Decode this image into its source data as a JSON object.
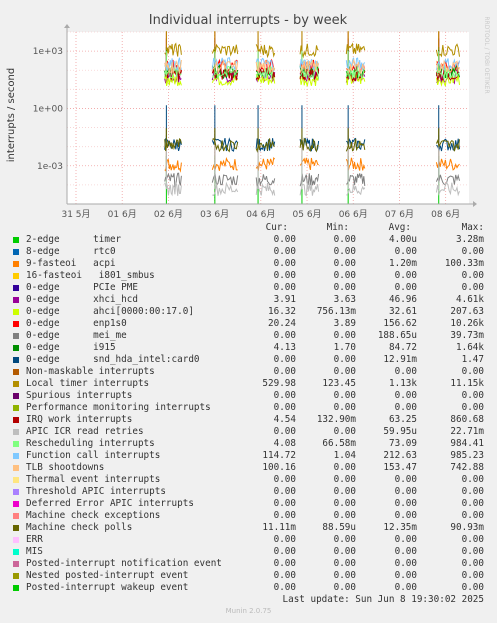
{
  "title": "Individual interrupts - by week",
  "ylabel": "interrupts / second",
  "side_label": "RRDTOOL / TOBI OETIKER",
  "columns": {
    "cur": "Cur:",
    "min": "Min:",
    "avg": "Avg:",
    "max": "Max:"
  },
  "chart_data": {
    "type": "line",
    "title": "Individual interrupts - by week",
    "ylabel": "interrupts / second",
    "y_scale": "log",
    "ylim": [
      1e-05,
      10000
    ],
    "y_ticks": [
      "1e+03",
      "1e+00",
      "1e-03"
    ],
    "x_ticks": [
      "31 5月",
      "01 6月",
      "02 6月",
      "03 6月",
      "04 6月",
      "05 6月",
      "06 6月",
      "07 6月",
      "08 6月"
    ],
    "grid": true,
    "series": [
      {
        "name": "2-edge      timer",
        "color": "#00cc00",
        "cur": "0.00",
        "min": "0.00",
        "avg": "4.00u",
        "max": "3.28m"
      },
      {
        "name": "8-edge      rtc0",
        "color": "#0066b3",
        "cur": "0.00",
        "min": "0.00",
        "avg": "0.00",
        "max": "0.00"
      },
      {
        "name": "9-fasteoi   acpi",
        "color": "#ff8000",
        "cur": "0.00",
        "min": "0.00",
        "avg": "1.20m",
        "max": "100.33m"
      },
      {
        "name": "16-fasteoi   i801_smbus",
        "color": "#ffcc00",
        "cur": "0.00",
        "min": "0.00",
        "avg": "0.00",
        "max": "0.00"
      },
      {
        "name": "0-edge      PCIe PME",
        "color": "#330099",
        "cur": "0.00",
        "min": "0.00",
        "avg": "0.00",
        "max": "0.00"
      },
      {
        "name": "0-edge      xhci_hcd",
        "color": "#990099",
        "cur": "3.91",
        "min": "3.63",
        "avg": "46.96",
        "max": "4.61k"
      },
      {
        "name": "0-edge      ahci[0000:00:17.0]",
        "color": "#ccff00",
        "cur": "16.32",
        "min": "756.13m",
        "avg": "32.61",
        "max": "207.63"
      },
      {
        "name": "0-edge      enp1s0",
        "color": "#ff0000",
        "cur": "20.24",
        "min": "3.89",
        "avg": "156.62",
        "max": "10.26k"
      },
      {
        "name": "0-edge      mei_me",
        "color": "#808080",
        "cur": "0.00",
        "min": "0.00",
        "avg": "188.65u",
        "max": "39.73m"
      },
      {
        "name": "0-edge      i915",
        "color": "#008f00",
        "cur": "4.13",
        "min": "1.70",
        "avg": "84.72",
        "max": "1.64k"
      },
      {
        "name": "0-edge      snd_hda_intel:card0",
        "color": "#00487d",
        "cur": "0.00",
        "min": "0.00",
        "avg": "12.91m",
        "max": "1.47"
      },
      {
        "name": "Non-maskable interrupts",
        "color": "#b35a00",
        "cur": "0.00",
        "min": "0.00",
        "avg": "0.00",
        "max": "0.00"
      },
      {
        "name": "Local timer interrupts",
        "color": "#b38f00",
        "cur": "529.98",
        "min": "123.45",
        "avg": "1.13k",
        "max": "11.15k"
      },
      {
        "name": "Spurious interrupts",
        "color": "#6b006b",
        "cur": "0.00",
        "min": "0.00",
        "avg": "0.00",
        "max": "0.00"
      },
      {
        "name": "Performance monitoring interrupts",
        "color": "#8fb300",
        "cur": "0.00",
        "min": "0.00",
        "avg": "0.00",
        "max": "0.00"
      },
      {
        "name": "IRQ work interrupts",
        "color": "#b30000",
        "cur": "4.54",
        "min": "132.90m",
        "avg": "63.25",
        "max": "860.68"
      },
      {
        "name": "APIC ICR read retries",
        "color": "#bebebe",
        "cur": "0.00",
        "min": "0.00",
        "avg": "59.95u",
        "max": "22.71m"
      },
      {
        "name": "Rescheduling interrupts",
        "color": "#80ff80",
        "cur": "4.08",
        "min": "66.58m",
        "avg": "73.09",
        "max": "984.41"
      },
      {
        "name": "Function call interrupts",
        "color": "#80c9ff",
        "cur": "114.72",
        "min": "1.04",
        "avg": "212.63",
        "max": "985.23"
      },
      {
        "name": "TLB shootdowns",
        "color": "#ffc080",
        "cur": "100.16",
        "min": "0.00",
        "avg": "153.47",
        "max": "742.88"
      },
      {
        "name": "Thermal event interrupts",
        "color": "#ffe680",
        "cur": "0.00",
        "min": "0.00",
        "avg": "0.00",
        "max": "0.00"
      },
      {
        "name": "Threshold APIC interrupts",
        "color": "#aa80ff",
        "cur": "0.00",
        "min": "0.00",
        "avg": "0.00",
        "max": "0.00"
      },
      {
        "name": "Deferred Error APIC interrupts",
        "color": "#ee00cc",
        "cur": "0.00",
        "min": "0.00",
        "avg": "0.00",
        "max": "0.00"
      },
      {
        "name": "Machine check exceptions",
        "color": "#ff8080",
        "cur": "0.00",
        "min": "0.00",
        "avg": "0.00",
        "max": "0.00"
      },
      {
        "name": "Machine check polls",
        "color": "#666600",
        "cur": "11.11m",
        "min": "88.59u",
        "avg": "12.35m",
        "max": "90.93m"
      },
      {
        "name": "ERR",
        "color": "#ffbfff",
        "cur": "0.00",
        "min": "0.00",
        "avg": "0.00",
        "max": "0.00"
      },
      {
        "name": "MIS",
        "color": "#00ffcc",
        "cur": "0.00",
        "min": "0.00",
        "avg": "0.00",
        "max": "0.00"
      },
      {
        "name": "Posted-interrupt notification event",
        "color": "#cc6699",
        "cur": "0.00",
        "min": "0.00",
        "avg": "0.00",
        "max": "0.00"
      },
      {
        "name": "Nested posted-interrupt event",
        "color": "#999900",
        "cur": "0.00",
        "min": "0.00",
        "avg": "0.00",
        "max": "0.00"
      },
      {
        "name": "Posted-interrupt wakeup event",
        "color": "#00cc00",
        "cur": "0.00",
        "min": "0.00",
        "avg": "0.00",
        "max": "0.00"
      }
    ],
    "active_segments": [
      {
        "start_day": 1.92,
        "end_day": 2.28
      },
      {
        "start_day": 2.95,
        "end_day": 3.5
      },
      {
        "start_day": 3.9,
        "end_day": 4.3
      },
      {
        "start_day": 4.85,
        "end_day": 5.25
      },
      {
        "start_day": 5.85,
        "end_day": 6.25
      },
      {
        "start_day": 7.8,
        "end_day": 8.3
      }
    ]
  },
  "last_update": "Last update:  Sun Jun  8 19:30:02 2025",
  "footer": "Munin 2.0.75"
}
